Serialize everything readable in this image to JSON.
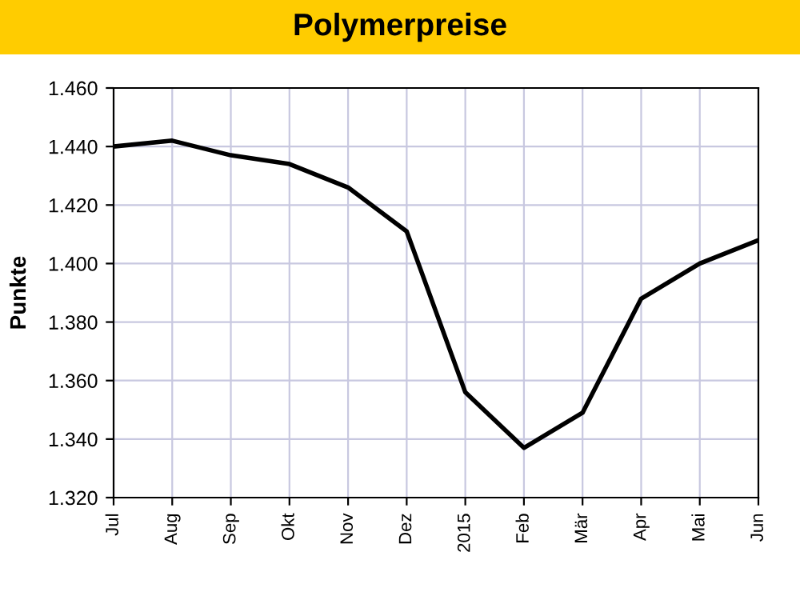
{
  "chart_data": {
    "type": "line",
    "title": "Polymerpreise",
    "ylabel": "Punkte",
    "categories": [
      "Jul",
      "Aug",
      "Sep",
      "Okt",
      "Nov",
      "Dez",
      "2015",
      "Feb",
      "Mär",
      "Apr",
      "Mai",
      "Jun"
    ],
    "series": [
      {
        "color": "#000000",
        "values": [
          1440,
          1442,
          1437,
          1434,
          1426,
          1411,
          1356,
          1337,
          1349,
          1388,
          1400,
          1408
        ]
      }
    ],
    "ylim": [
      1320,
      1460
    ],
    "yticks": [
      {
        "value": 1320,
        "label": "1.320"
      },
      {
        "value": 1340,
        "label": "1.340"
      },
      {
        "value": 1360,
        "label": "1.360"
      },
      {
        "value": 1380,
        "label": "1.380"
      },
      {
        "value": 1400,
        "label": "1.400"
      },
      {
        "value": 1420,
        "label": "1.420"
      },
      {
        "value": 1440,
        "label": "1.440"
      },
      {
        "value": 1460,
        "label": "1.460"
      }
    ],
    "grid": true,
    "marker": "none",
    "line_style": "solid"
  }
}
